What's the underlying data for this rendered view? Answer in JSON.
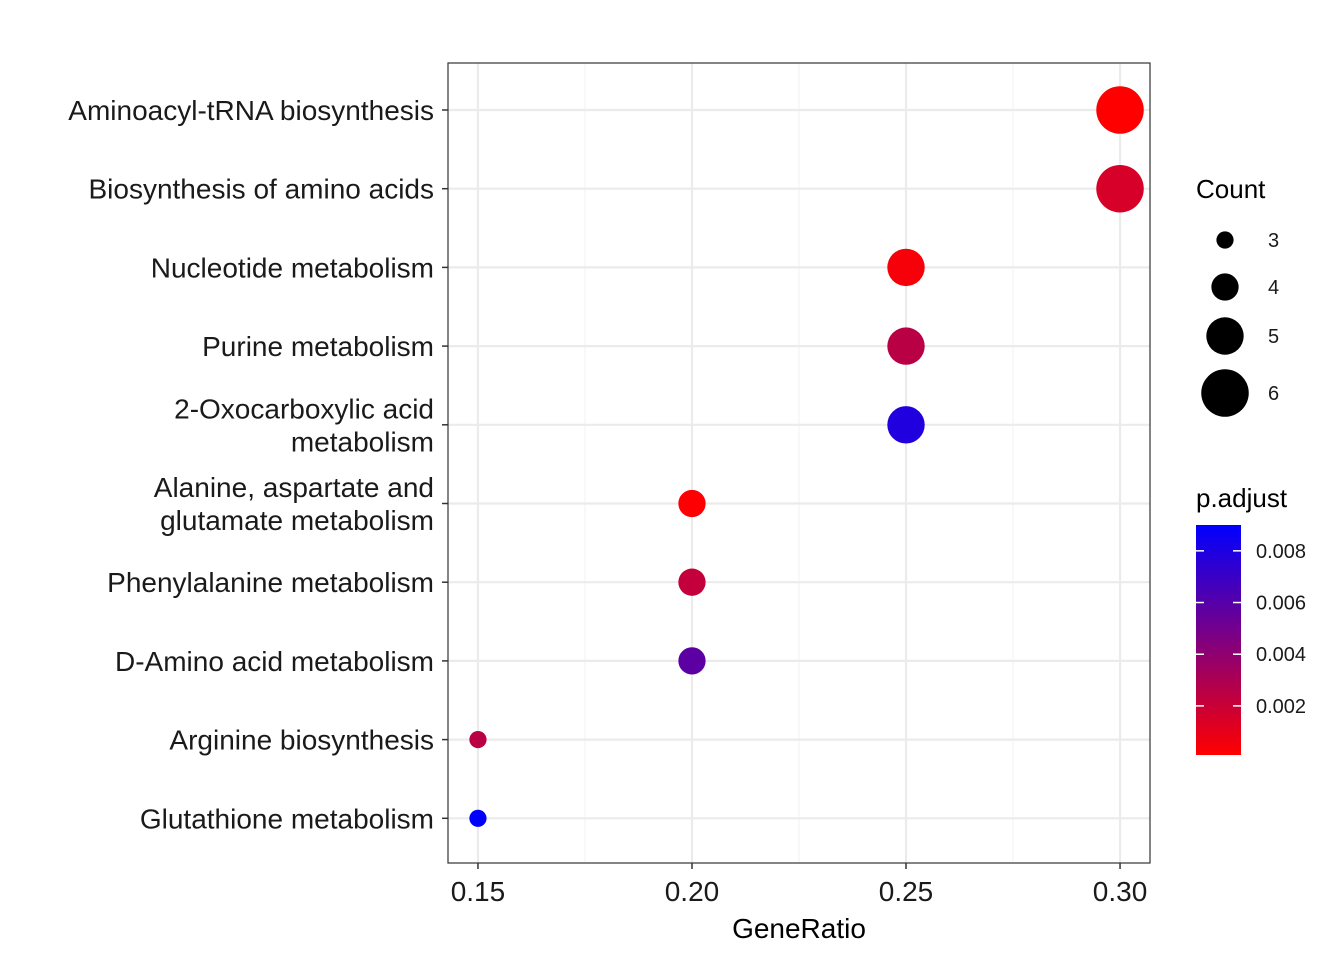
{
  "chart_data": {
    "type": "scatter",
    "xlabel": "GeneRatio",
    "ylabel": "",
    "xlim": [
      0.143,
      0.307
    ],
    "x_ticks": [
      "0.15",
      "0.20",
      "0.25",
      "0.30"
    ],
    "grid": true,
    "points": [
      {
        "category": "Aminoacyl-tRNA biosynthesis",
        "label_lines": [
          "Aminoacyl-tRNA biosynthesis"
        ],
        "gene_ratio": 0.3,
        "count": 6,
        "p_adjust": 0.0001
      },
      {
        "category": "Biosynthesis of amino acids",
        "label_lines": [
          "Biosynthesis of amino acids"
        ],
        "gene_ratio": 0.3,
        "count": 6,
        "p_adjust": 0.0015
      },
      {
        "category": "Nucleotide metabolism",
        "label_lines": [
          "Nucleotide metabolism"
        ],
        "gene_ratio": 0.25,
        "count": 5,
        "p_adjust": 0.0004
      },
      {
        "category": "Purine metabolism",
        "label_lines": [
          "Purine metabolism"
        ],
        "gene_ratio": 0.25,
        "count": 5,
        "p_adjust": 0.0025
      },
      {
        "category": "2-Oxocarboxylic acid metabolism",
        "label_lines": [
          "2-Oxocarboxylic acid",
          "metabolism"
        ],
        "gene_ratio": 0.25,
        "count": 5,
        "p_adjust": 0.0079
      },
      {
        "category": "Alanine, aspartate and glutamate metabolism",
        "label_lines": [
          "Alanine, aspartate and",
          "glutamate metabolism"
        ],
        "gene_ratio": 0.2,
        "count": 4,
        "p_adjust": 0.0002
      },
      {
        "category": "Phenylalanine metabolism",
        "label_lines": [
          "Phenylalanine metabolism"
        ],
        "gene_ratio": 0.2,
        "count": 4,
        "p_adjust": 0.0022
      },
      {
        "category": "D-Amino acid metabolism",
        "label_lines": [
          "D-Amino acid metabolism"
        ],
        "gene_ratio": 0.2,
        "count": 4,
        "p_adjust": 0.0058
      },
      {
        "category": "Arginine biosynthesis",
        "label_lines": [
          "Arginine biosynthesis"
        ],
        "gene_ratio": 0.15,
        "count": 3,
        "p_adjust": 0.0025
      },
      {
        "category": "Glutathione metabolism",
        "label_lines": [
          "Glutathione metabolism"
        ],
        "gene_ratio": 0.15,
        "count": 3,
        "p_adjust": 0.009
      }
    ],
    "size_legend": {
      "title": "Count",
      "values": [
        3,
        4,
        5,
        6
      ],
      "labels": [
        "3",
        "4",
        "5",
        "6"
      ]
    },
    "color_legend": {
      "title": "p.adjust",
      "min": 0.0001,
      "max": 0.009,
      "ticks": [
        0.002,
        0.004,
        0.006,
        0.008
      ],
      "tick_labels": [
        "0.002",
        "0.004",
        "0.006",
        "0.008"
      ],
      "low_color": "#ff0000",
      "high_color": "#0000ff"
    },
    "colors": {
      "panel_border": "#333333",
      "grid_major": "#ebebeb",
      "grid_minor": "#f4f4f4"
    }
  }
}
